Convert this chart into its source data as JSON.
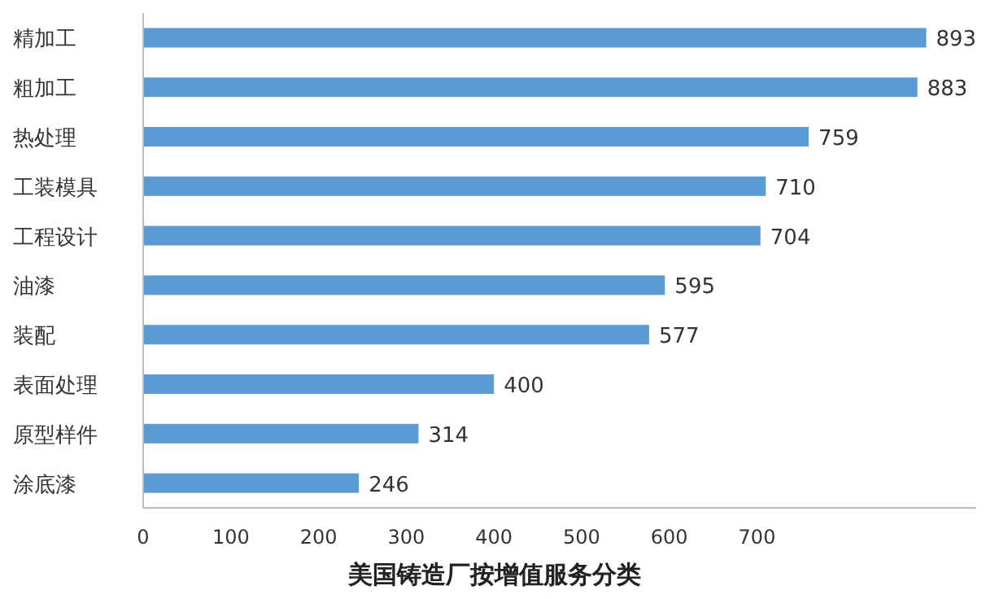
{
  "chart_data": {
    "type": "bar",
    "orientation": "horizontal",
    "xlabel": "美国铸造厂按增值服务分类",
    "categories": [
      "精加工",
      "粗加工",
      "热处理",
      "工装模具",
      "工程设计",
      "油漆",
      "装配",
      "表面处理",
      "原型样件",
      "涂底漆"
    ],
    "values": [
      893,
      883,
      759,
      710,
      704,
      595,
      577,
      400,
      314,
      246
    ],
    "color": "#5b9bd5",
    "data_labels": true,
    "xlim": [
      0,
      950
    ],
    "xticks": [
      0,
      100,
      200,
      300,
      400,
      500,
      600,
      700
    ]
  }
}
